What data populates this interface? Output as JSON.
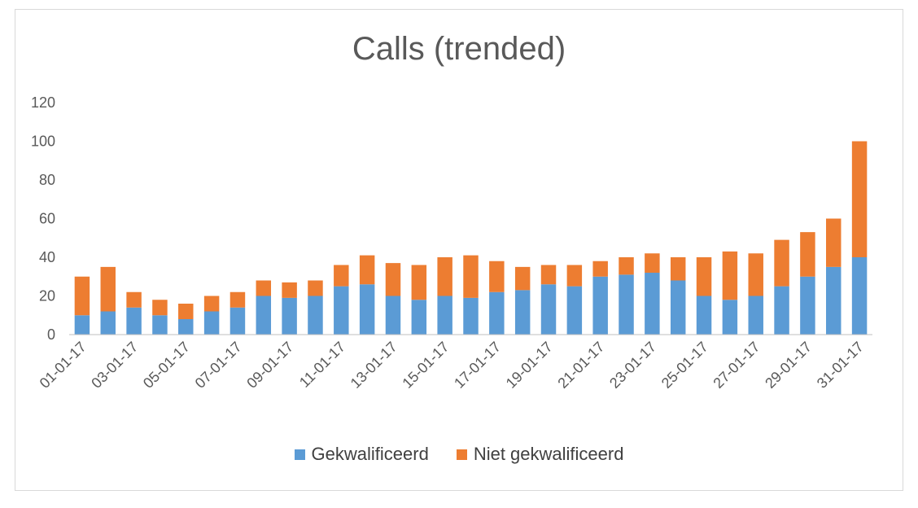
{
  "chart_data": {
    "type": "bar",
    "stacked": true,
    "title": "Calls (trended)",
    "xlabel": "",
    "ylabel": "",
    "ylim": [
      0,
      120
    ],
    "yticks": [
      0,
      20,
      40,
      60,
      80,
      100,
      120
    ],
    "categories": [
      "01-01-17",
      "02-01-17",
      "03-01-17",
      "04-01-17",
      "05-01-17",
      "06-01-17",
      "07-01-17",
      "08-01-17",
      "09-01-17",
      "10-01-17",
      "11-01-17",
      "12-01-17",
      "13-01-17",
      "14-01-17",
      "15-01-17",
      "16-01-17",
      "17-01-17",
      "18-01-17",
      "19-01-17",
      "20-01-17",
      "21-01-17",
      "22-01-17",
      "23-01-17",
      "24-01-17",
      "25-01-17",
      "26-01-17",
      "27-01-17",
      "28-01-17",
      "29-01-17",
      "30-01-17",
      "31-01-17"
    ],
    "x_tick_labels": [
      "01-01-17",
      "03-01-17",
      "05-01-17",
      "07-01-17",
      "09-01-17",
      "11-01-17",
      "13-01-17",
      "15-01-17",
      "17-01-17",
      "19-01-17",
      "21-01-17",
      "23-01-17",
      "25-01-17",
      "27-01-17",
      "29-01-17",
      "31-01-17"
    ],
    "series": [
      {
        "name": "Gekwalificeerd",
        "color": "#5b9bd5",
        "values": [
          10,
          12,
          14,
          10,
          8,
          12,
          14,
          20,
          19,
          20,
          25,
          26,
          20,
          18,
          20,
          19,
          22,
          23,
          26,
          25,
          30,
          31,
          32,
          28,
          20,
          18,
          20,
          25,
          30,
          35,
          40
        ]
      },
      {
        "name": "Niet gekwalificeerd",
        "color": "#ed7d31",
        "values": [
          20,
          23,
          8,
          8,
          8,
          8,
          8,
          8,
          8,
          8,
          11,
          15,
          17,
          18,
          20,
          22,
          16,
          12,
          10,
          11,
          8,
          9,
          10,
          12,
          20,
          25,
          22,
          24,
          23,
          25,
          60
        ]
      }
    ],
    "grid": false,
    "legend": "bottom"
  }
}
